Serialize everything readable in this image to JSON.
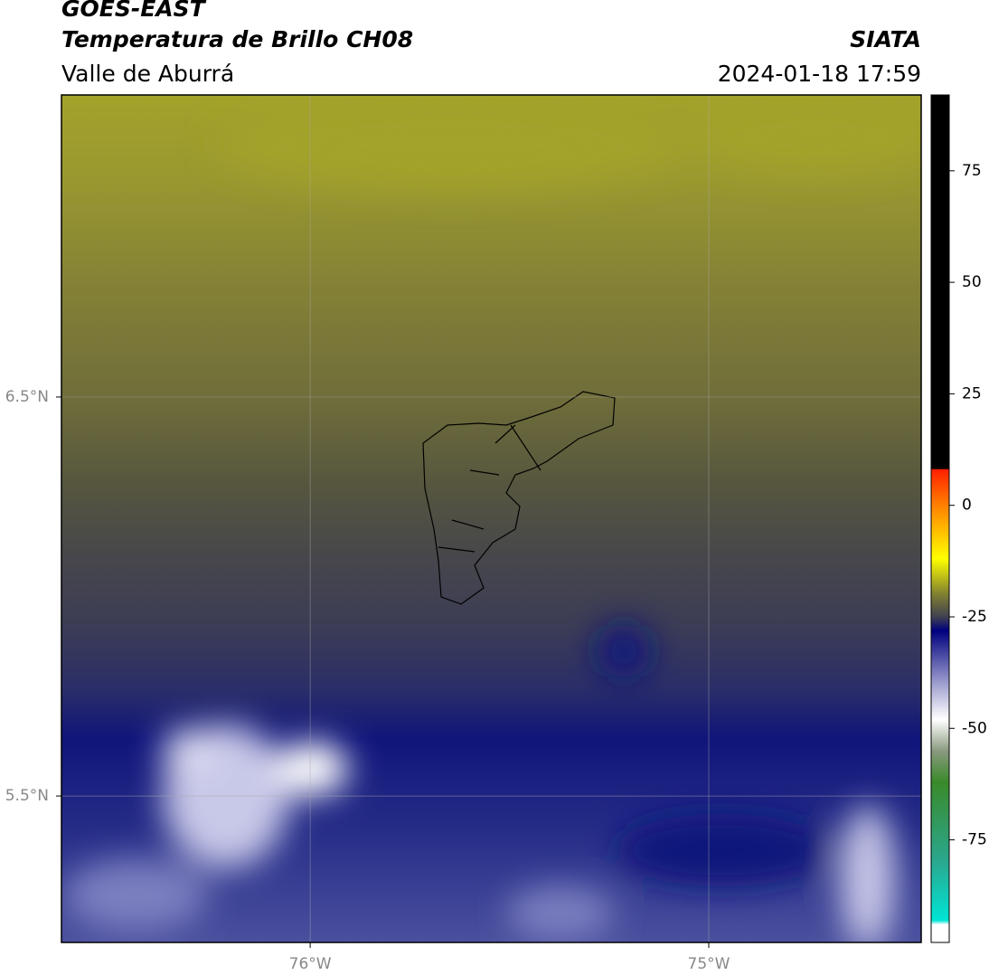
{
  "header": {
    "satellite": "GOES-EAST",
    "product": "Temperatura de Brillo CH08",
    "source": "SIATA",
    "region": "Valle de Aburrá",
    "timestamp": "2024-01-18 17:59"
  },
  "map": {
    "lonlim": [
      -76.624,
      -74.467
    ],
    "latlim": [
      5.133,
      7.257
    ],
    "lon_ticks": [
      {
        "value": -76,
        "label": "76°W"
      },
      {
        "value": -75,
        "label": "75°W"
      }
    ],
    "lat_ticks": [
      {
        "value": 6.5,
        "label": "6.5°N"
      },
      {
        "value": 5.5,
        "label": "5.5°N"
      }
    ]
  },
  "colorbar": {
    "lim": [
      -98,
      92
    ],
    "ticks": [
      75,
      50,
      25,
      0,
      -25,
      -50,
      -75
    ]
  }
}
